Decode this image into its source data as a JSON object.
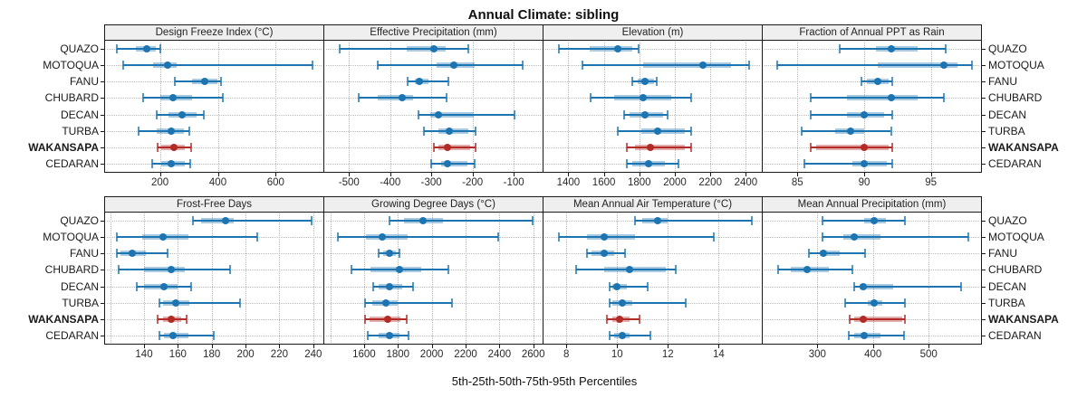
{
  "title": "Annual Climate: sibling",
  "xlabel": "5th-25th-50th-75th-95th Percentiles",
  "stations": [
    "QUAZO",
    "MOTOQUA",
    "FANU",
    "CHUBARD",
    "DECAN",
    "TURBA",
    "WAKANSAPA",
    "CEDARAN"
  ],
  "highlight_station": "WAKANSAPA",
  "colors": {
    "series_normal": "#1c74b0",
    "series_highlight": "#b32b27",
    "strip_bg": "#efefef",
    "panel_border": "#1a1a1a",
    "grid": "#bdbdbd"
  },
  "percentile_labels": [
    "5th",
    "25th",
    "50th",
    "75th",
    "95th"
  ],
  "chart_data": [
    {
      "type": "dot-whisker",
      "title": "Design Freeze Index (°C)",
      "xlim": [
        10,
        765
      ],
      "ticks": [
        200,
        400,
        600
      ],
      "grid_extra": [],
      "series": {
        "QUAZO": [
          50,
          115,
          155,
          185,
          200
        ],
        "MOTOQUA": [
          73,
          175,
          225,
          258,
          726
        ],
        "FANU": [
          250,
          310,
          355,
          400,
          412
        ],
        "CHUBARD": [
          143,
          200,
          245,
          310,
          417
        ],
        "DECAN": [
          188,
          230,
          276,
          325,
          351
        ],
        "TURBA": [
          125,
          190,
          240,
          283,
          302
        ],
        "WAKANSAPA": [
          192,
          205,
          248,
          285,
          308
        ],
        "CEDARAN": [
          173,
          205,
          240,
          285,
          305
        ]
      }
    },
    {
      "type": "dot-whisker",
      "title": "Effective Precipitation (mm)",
      "xlim": [
        -560,
        -30
      ],
      "ticks": [
        -500,
        -400,
        -300,
        -200,
        -100
      ],
      "grid_extra": [],
      "series": {
        "QUAZO": [
          -523,
          -360,
          -295,
          -265,
          -210
        ],
        "MOTOQUA": [
          -430,
          -287,
          -245,
          -196,
          -78
        ],
        "FANU": [
          -358,
          -340,
          -330,
          -308,
          -258
        ],
        "CHUBARD": [
          -476,
          -430,
          -370,
          -345,
          -263
        ],
        "DECAN": [
          -332,
          -302,
          -283,
          -197,
          -98
        ],
        "TURBA": [
          -318,
          -284,
          -257,
          -210,
          -192
        ],
        "WAKANSAPA": [
          -295,
          -282,
          -260,
          -205,
          -193
        ],
        "CEDARAN": [
          -300,
          -276,
          -260,
          -213,
          -195
        ]
      }
    },
    {
      "type": "dot-whisker",
      "title": "Elevation (m)",
      "xlim": [
        1260,
        2490
      ],
      "ticks": [
        1400,
        1600,
        1800,
        2000,
        2200,
        2400
      ],
      "grid_extra": [],
      "series": {
        "QUAZO": [
          1345,
          1520,
          1680,
          1760,
          1798
        ],
        "MOTOQUA": [
          1478,
          1820,
          2160,
          2315,
          2420
        ],
        "FANU": [
          1760,
          1790,
          1830,
          1885,
          1897
        ],
        "CHUBARD": [
          1525,
          1660,
          1820,
          1980,
          2090
        ],
        "DECAN": [
          1715,
          1745,
          1830,
          1935,
          1958
        ],
        "TURBA": [
          1680,
          1810,
          1905,
          2055,
          2090
        ],
        "WAKANSAPA": [
          1728,
          1778,
          1860,
          2058,
          2092
        ],
        "CEDARAN": [
          1728,
          1760,
          1850,
          1945,
          2020
        ]
      }
    },
    {
      "type": "dot-whisker",
      "title": "Fraction of Annual PPT as Rain",
      "xlim": [
        82.4,
        98.75
      ],
      "ticks": [
        85,
        90,
        95
      ],
      "grid_extra": [],
      "series": {
        "QUAZO": [
          88.2,
          90.9,
          92.0,
          94.0,
          96.1
        ],
        "MOTOQUA": [
          83.5,
          91.0,
          96.0,
          97.0,
          98.1
        ],
        "FANU": [
          89.8,
          90.2,
          91.0,
          91.8,
          92.1
        ],
        "CHUBARD": [
          86.0,
          88.7,
          92.0,
          94.0,
          96.0
        ],
        "DECAN": [
          86.0,
          88.7,
          90.0,
          91.5,
          92.1
        ],
        "TURBA": [
          85.3,
          87.8,
          89.0,
          90.0,
          92.0
        ],
        "WAKANSAPA": [
          86.0,
          86.4,
          90.0,
          91.8,
          92.1
        ],
        "CEDARAN": [
          85.5,
          89.1,
          90.0,
          91.7,
          92.1
        ]
      }
    },
    {
      "type": "dot-whisker",
      "title": "Frost-Free Days",
      "xlim": [
        117,
        246
      ],
      "ticks": [
        140,
        160,
        180,
        200,
        220,
        240
      ],
      "grid_extra": [
        120
      ],
      "series": {
        "QUAZO": [
          169,
          174,
          188,
          193,
          239
        ],
        "MOTOQUA": [
          124,
          139,
          151,
          166,
          207
        ],
        "FANU": [
          124,
          126,
          133,
          141,
          154
        ],
        "CHUBARD": [
          125,
          140,
          156,
          164,
          191
        ],
        "DECAN": [
          136,
          140,
          152,
          160,
          168
        ],
        "TURBA": [
          149,
          151,
          159,
          167,
          197
        ],
        "WAKANSAPA": [
          148,
          151,
          156,
          162,
          165
        ],
        "CEDARAN": [
          149,
          152,
          157,
          166,
          181
        ]
      }
    },
    {
      "type": "dot-whisker",
      "title": "Growing Degree Days (°C)",
      "xlim": [
        1365,
        2655
      ],
      "ticks": [
        1600,
        1800,
        2000,
        2200,
        2400,
        2600
      ],
      "grid_extra": [
        1400
      ],
      "series": {
        "QUAZO": [
          1750,
          1835,
          1950,
          2065,
          2595
        ],
        "MOTOQUA": [
          1445,
          1610,
          1710,
          1860,
          2395
        ],
        "FANU": [
          1685,
          1712,
          1750,
          1790,
          1807
        ],
        "CHUBARD": [
          1525,
          1640,
          1810,
          1940,
          2100
        ],
        "DECAN": [
          1655,
          1685,
          1750,
          1825,
          1890
        ],
        "TURBA": [
          1605,
          1650,
          1730,
          1800,
          2120
        ],
        "WAKANSAPA": [
          1605,
          1630,
          1740,
          1815,
          1850
        ],
        "CEDARAN": [
          1620,
          1685,
          1750,
          1810,
          1865
        ]
      }
    },
    {
      "type": "dot-whisker",
      "title": "Mean Annual Air Temperature (°C)",
      "xlim": [
        7.1,
        15.7
      ],
      "ticks": [
        8,
        10,
        12,
        14
      ],
      "grid_extra": [],
      "series": {
        "QUAZO": [
          10.7,
          11.0,
          11.6,
          12.0,
          15.3
        ],
        "MOTOQUA": [
          7.7,
          8.8,
          9.5,
          10.7,
          13.8
        ],
        "FANU": [
          8.8,
          9.0,
          9.5,
          9.9,
          10.3
        ],
        "CHUBARD": [
          8.4,
          9.5,
          10.5,
          11.9,
          12.3
        ],
        "DECAN": [
          9.7,
          9.8,
          10.0,
          10.4,
          11.2
        ],
        "TURBA": [
          9.7,
          9.8,
          10.2,
          10.6,
          12.7
        ],
        "WAKANSAPA": [
          9.6,
          9.8,
          10.1,
          10.5,
          10.9
        ],
        "CEDARAN": [
          9.7,
          9.9,
          10.2,
          10.5,
          11.3
        ]
      }
    },
    {
      "type": "dot-whisker",
      "title": "Mean Annual Precipitation (mm)",
      "xlim": [
        202,
        594
      ],
      "ticks": [
        300,
        400,
        500
      ],
      "grid_extra": [],
      "series": {
        "QUAZO": [
          310,
          384,
          402,
          423,
          457
        ],
        "MOTOQUA": [
          310,
          346,
          366,
          414,
          572
        ],
        "FANU": [
          285,
          304,
          311,
          341,
          386
        ],
        "CHUBARD": [
          230,
          253,
          281,
          320,
          363
        ],
        "DECAN": [
          366,
          376,
          382,
          437,
          558
        ],
        "TURBA": [
          350,
          390,
          402,
          417,
          457
        ],
        "WAKANSAPA": [
          358,
          366,
          383,
          452,
          458
        ],
        "CEDARAN": [
          357,
          367,
          384,
          414,
          456
        ]
      }
    }
  ]
}
